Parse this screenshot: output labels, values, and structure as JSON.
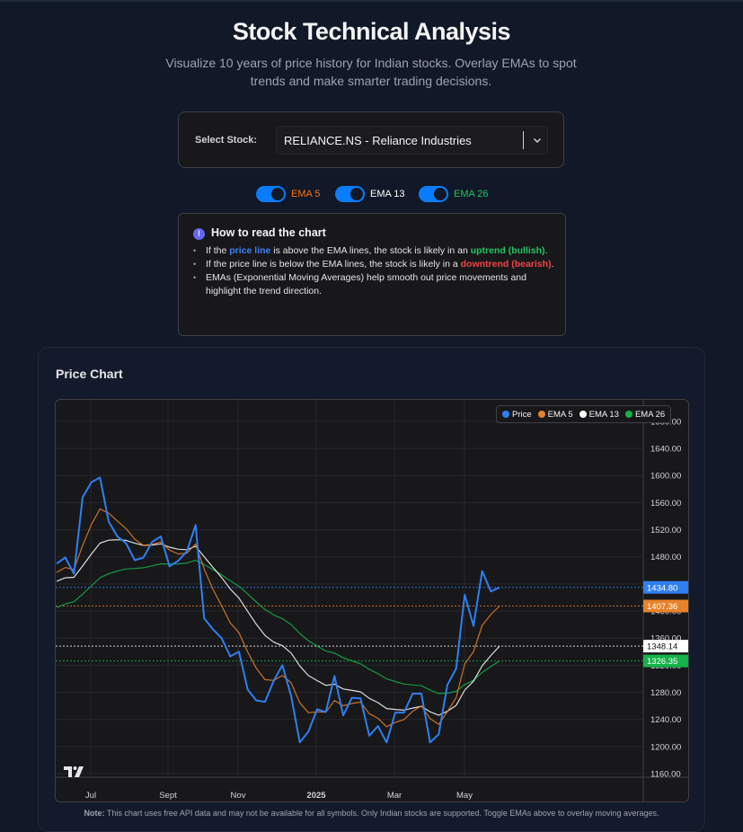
{
  "header": {
    "title": "Stock Technical Analysis",
    "subtitle": "Visualize 10 years of price history for Indian stocks. Overlay EMAs to spot trends and make smarter trading decisions."
  },
  "stock_selector": {
    "label": "Select Stock:",
    "value": "RELIANCE.NS - Reliance Industries"
  },
  "toggles": [
    {
      "label": "EMA 5",
      "enabled": true,
      "color": "#f97316"
    },
    {
      "label": "EMA 13",
      "enabled": true,
      "color": "#ffffff"
    },
    {
      "label": "EMA 26",
      "enabled": true,
      "color": "#22c55e"
    }
  ],
  "info": {
    "title": "How to read the chart",
    "items": [
      {
        "pre": "If the ",
        "hl1": "price line",
        "mid": " is above the EMA lines, the stock is likely in an ",
        "hl2": "uptrend (bullish)",
        "post": "."
      },
      {
        "pre": "If the price line is below the EMA lines, the stock is likely in a ",
        "hl2": "downtrend (bearish)",
        "post": "."
      },
      {
        "text": "EMAs (Exponential Moving Averages) help smooth out price movements and highlight the trend direction."
      }
    ]
  },
  "chart_section": {
    "title": "Price Chart",
    "legend": [
      {
        "label": "Price",
        "color": "#2f7ff0"
      },
      {
        "label": "EMA 5",
        "color": "#e8822a"
      },
      {
        "label": "EMA 13",
        "color": "#ffffff"
      },
      {
        "label": "EMA 26",
        "color": "#16b24a"
      }
    ],
    "last_value_labels": [
      {
        "series": "Price",
        "value": "1434.80",
        "bg": "#2f7ff0",
        "fg": "#ffffff"
      },
      {
        "series": "EMA 5",
        "value": "1407.36",
        "bg": "#e8822a",
        "fg": "#ffffff"
      },
      {
        "series": "EMA 13",
        "value": "1348.14",
        "bg": "#ffffff",
        "fg": "#111111"
      },
      {
        "series": "EMA 26",
        "value": "1326.35",
        "bg": "#16b24a",
        "fg": "#ffffff"
      }
    ],
    "note_bold": "Note:",
    "note_text": " This chart uses free API data and may not be available for all symbols. Only Indian stocks are supported. Toggle EMAs above to overlay moving averages."
  },
  "chart_data": {
    "type": "line",
    "title": "Price Chart",
    "xlabel": "",
    "ylabel": "",
    "x_tick_labels": [
      "Jul",
      "Sept",
      "Nov",
      "2025",
      "Mar",
      "May"
    ],
    "y_tick_labels": [
      "1160.00",
      "1200.00",
      "1240.00",
      "1280.00",
      "1320.00",
      "1360.00",
      "1400.00",
      "1440.00",
      "1480.00",
      "1520.00",
      "1560.00",
      "1600.00",
      "1640.00",
      "1680.00"
    ],
    "ylim": [
      1150,
      1685
    ],
    "grid": true,
    "legend_position": "top-right",
    "series": [
      {
        "name": "Price",
        "color": "#2f7ff0",
        "values": [
          1470,
          1479,
          1455,
          1568,
          1590,
          1597,
          1532,
          1510,
          1500,
          1475,
          1479,
          1502,
          1510,
          1466,
          1474,
          1488,
          1527,
          1389,
          1373,
          1360,
          1333,
          1340,
          1284,
          1268,
          1266,
          1297,
          1320,
          1275,
          1206,
          1222,
          1255,
          1251,
          1304,
          1246,
          1272,
          1271,
          1216,
          1230,
          1206,
          1250,
          1250,
          1278,
          1278,
          1206,
          1218,
          1291,
          1315,
          1424,
          1378,
          1459,
          1429,
          1434.8
        ]
      },
      {
        "name": "EMA 5",
        "color": "#e8822a",
        "values": []
      },
      {
        "name": "EMA 13",
        "color": "#ffffff",
        "values": []
      },
      {
        "name": "EMA 26",
        "color": "#16b24a",
        "values": []
      }
    ],
    "ema_seed": {
      "EMA 5": 1457,
      "EMA 13": 1444,
      "EMA 26": 1405
    },
    "last_values": {
      "Price": 1434.8,
      "EMA 5": 1407.36,
      "EMA 13": 1348.14,
      "EMA 26": 1326.35
    }
  }
}
